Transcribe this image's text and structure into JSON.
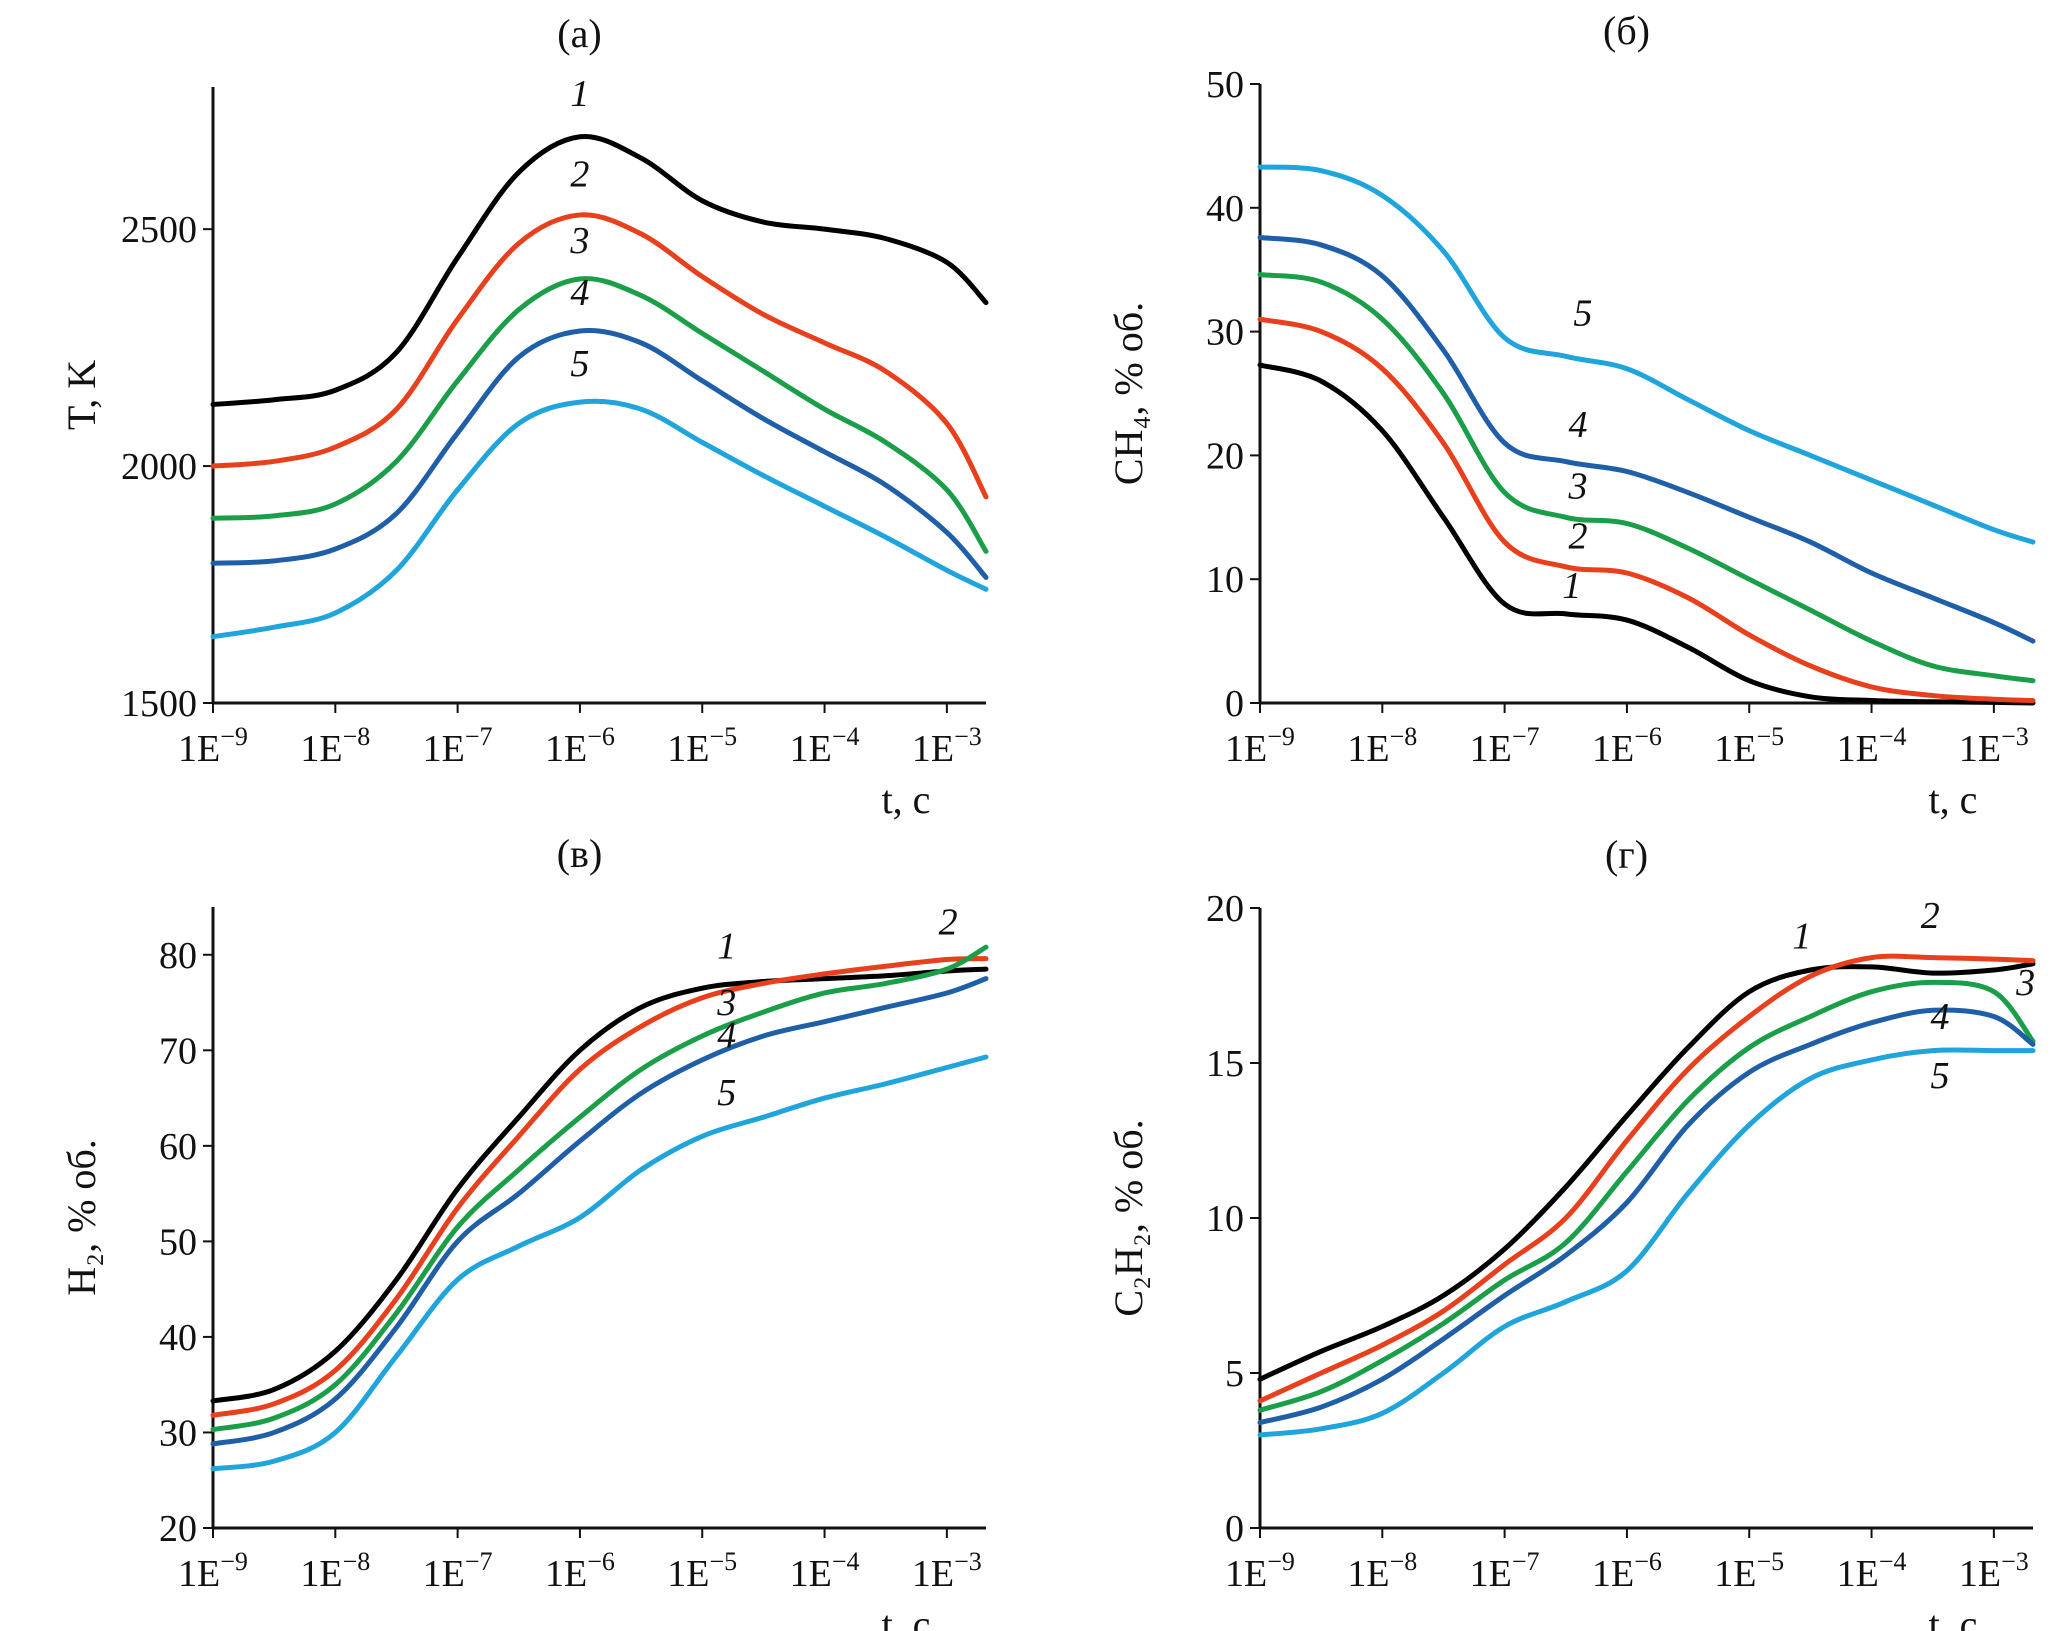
{
  "chart_data": [
    {
      "type": "line",
      "title": "(а)",
      "xlabel": "t, с",
      "ylabel": "T, K",
      "xscale": "log",
      "x_log10": [
        -9,
        -8.5,
        -8,
        -7.5,
        -7,
        -6.5,
        -6,
        -5.5,
        -5,
        -4.5,
        -4,
        -3.5,
        -3,
        -2.68
      ],
      "xticks": [
        "1E−9",
        "1E−8",
        "1E−7",
        "1E−6",
        "1E−5",
        "1E−4",
        "1E−3"
      ],
      "yticks": [
        1500,
        2000,
        2500
      ],
      "ylim": [
        1500,
        2800
      ],
      "grid": false,
      "series": [
        {
          "name": "1",
          "color": "#000000",
          "values": [
            2130,
            2140,
            2160,
            2240,
            2440,
            2620,
            2695,
            2650,
            2560,
            2515,
            2500,
            2480,
            2430,
            2345
          ],
          "label_at": [
            -6,
            2760
          ]
        },
        {
          "name": "2",
          "color": "#e8401c",
          "values": [
            2000,
            2010,
            2040,
            2120,
            2310,
            2470,
            2530,
            2490,
            2400,
            2320,
            2260,
            2200,
            2090,
            1935
          ],
          "label_at": [
            -6,
            2590
          ]
        },
        {
          "name": "3",
          "color": "#1a9e48",
          "values": [
            1890,
            1895,
            1920,
            2010,
            2180,
            2330,
            2395,
            2360,
            2280,
            2200,
            2120,
            2050,
            1950,
            1820
          ],
          "label_at": [
            -6,
            2450
          ]
        },
        {
          "name": "4",
          "color": "#1f5fa8",
          "values": [
            1795,
            1800,
            1825,
            1900,
            2070,
            2230,
            2285,
            2260,
            2180,
            2100,
            2030,
            1960,
            1860,
            1765
          ],
          "label_at": [
            -6,
            2340
          ]
        },
        {
          "name": "5",
          "color": "#1fa4dc",
          "values": [
            1640,
            1660,
            1690,
            1780,
            1950,
            2090,
            2135,
            2120,
            2050,
            1980,
            1915,
            1850,
            1780,
            1740
          ],
          "label_at": [
            -6,
            2190
          ]
        }
      ]
    },
    {
      "type": "line",
      "title": "(б)",
      "xlabel": "t, с",
      "ylabel": "CH₄, % об.",
      "xscale": "log",
      "x_log10": [
        -9,
        -8.5,
        -8,
        -7.5,
        -7,
        -6.5,
        -6,
        -5.5,
        -5,
        -4.5,
        -4,
        -3.5,
        -3,
        -2.68
      ],
      "xticks": [
        "1E−9",
        "1E−8",
        "1E−7",
        "1E−6",
        "1E−5",
        "1E−4",
        "1E−3"
      ],
      "yticks": [
        0,
        10,
        20,
        30,
        40,
        50
      ],
      "ylim": [
        0,
        50
      ],
      "grid": false,
      "series": [
        {
          "name": "1",
          "color": "#000000",
          "values": [
            27.3,
            26,
            22,
            15,
            8,
            7.2,
            6.7,
            4.5,
            1.8,
            0.5,
            0.2,
            0.1,
            0.05,
            0
          ],
          "label_at": [
            -6.45,
            8.5
          ]
        },
        {
          "name": "2",
          "color": "#e8401c",
          "values": [
            31,
            30,
            27,
            21,
            13,
            11,
            10.5,
            8.5,
            5.5,
            3,
            1.3,
            0.6,
            0.3,
            0.2
          ],
          "label_at": [
            -6.4,
            12.5
          ]
        },
        {
          "name": "3",
          "color": "#1a9e48",
          "values": [
            34.6,
            34,
            31,
            25,
            17,
            15,
            14.5,
            12.5,
            10,
            7.5,
            5,
            3,
            2.2,
            1.8
          ],
          "label_at": [
            -6.4,
            16.5
          ]
        },
        {
          "name": "4",
          "color": "#1f5fa8",
          "values": [
            37.6,
            37,
            34.5,
            28.5,
            21,
            19.5,
            18.7,
            17,
            15,
            13,
            10.5,
            8.5,
            6.5,
            5
          ],
          "label_at": [
            -6.4,
            21.5
          ]
        },
        {
          "name": "5",
          "color": "#1fa4dc",
          "values": [
            43.3,
            43,
            41,
            36.5,
            29.5,
            28,
            27,
            24.5,
            22,
            20,
            18,
            16,
            14,
            13
          ],
          "label_at": [
            -6.36,
            30.5
          ]
        }
      ]
    },
    {
      "type": "line",
      "title": "(в)",
      "xlabel": "t, с",
      "ylabel": "H₂, % об.",
      "xscale": "log",
      "x_log10": [
        -9,
        -8.5,
        -8,
        -7.5,
        -7,
        -6.5,
        -6,
        -5.5,
        -5,
        -4.5,
        -4,
        -3.5,
        -3,
        -2.68
      ],
      "xticks": [
        "1E−9",
        "1E−8",
        "1E−7",
        "1E−6",
        "1E−5",
        "1E−4",
        "1E−3"
      ],
      "yticks": [
        20,
        30,
        40,
        50,
        60,
        70,
        80
      ],
      "ylim": [
        20,
        85
      ],
      "grid": false,
      "series": [
        {
          "name": "1",
          "color": "#000000",
          "values": [
            33.3,
            34.5,
            38.5,
            46,
            55.5,
            63,
            70,
            74.5,
            76.5,
            77.2,
            77.5,
            77.8,
            78.3,
            78.5
          ],
          "label_at": [
            -4.8,
            79.6
          ]
        },
        {
          "name": "2",
          "color": "#e8401c",
          "values": [
            31.8,
            33,
            36.5,
            44,
            53.5,
            61,
            68,
            72.5,
            75.5,
            77,
            78,
            78.8,
            79.5,
            79.6
          ],
          "label_at": [
            -2.99,
            82.1
          ]
        },
        {
          "name": "3",
          "color": "#1a9e48",
          "values": [
            30.3,
            31.5,
            35,
            42.5,
            51.5,
            57.5,
            63,
            68,
            71.5,
            74,
            76,
            77,
            78.5,
            80.8
          ],
          "label_at": [
            -4.8,
            73.7
          ]
        },
        {
          "name": "4",
          "color": "#1f5fa8",
          "values": [
            28.8,
            30,
            33.5,
            41,
            50,
            55,
            60.5,
            65.5,
            69,
            71.5,
            73,
            74.5,
            76,
            77.5
          ],
          "label_at": [
            -4.8,
            70.3
          ]
        },
        {
          "name": "5",
          "color": "#1fa4dc",
          "values": [
            26.2,
            27,
            30,
            38,
            46,
            49.5,
            52.5,
            57.5,
            61,
            63,
            65,
            66.5,
            68.2,
            69.3
          ],
          "label_at": [
            -4.8,
            64.3
          ]
        }
      ]
    },
    {
      "type": "line",
      "title": "(г)",
      "xlabel": "t, с",
      "ylabel": "C₂H₂, % об.",
      "xscale": "log",
      "x_log10": [
        -9,
        -8.5,
        -8,
        -7.5,
        -7,
        -6.5,
        -6,
        -5.5,
        -5,
        -4.5,
        -4,
        -3.5,
        -3,
        -2.68
      ],
      "xticks": [
        "1E−9",
        "1E−8",
        "1E−7",
        "1E−6",
        "1E−5",
        "1E−4",
        "1E−3"
      ],
      "yticks": [
        0,
        5,
        10,
        15,
        20
      ],
      "ylim": [
        0,
        20
      ],
      "grid": false,
      "series": [
        {
          "name": "1",
          "color": "#000000",
          "values": [
            4.8,
            5.7,
            6.5,
            7.5,
            9,
            11,
            13.3,
            15.5,
            17.3,
            18,
            18.1,
            17.9,
            18,
            18.2
          ],
          "label_at": [
            -4.57,
            18.7
          ]
        },
        {
          "name": "2",
          "color": "#e8401c",
          "values": [
            4.1,
            5,
            5.9,
            7,
            8.5,
            10,
            12.5,
            14.8,
            16.5,
            17.8,
            18.4,
            18.4,
            18.35,
            18.3
          ],
          "label_at": [
            -3.52,
            19.35
          ]
        },
        {
          "name": "3",
          "color": "#1a9e48",
          "values": [
            3.8,
            4.4,
            5.4,
            6.6,
            8,
            9.2,
            11.5,
            13.8,
            15.5,
            16.5,
            17.3,
            17.6,
            17.3,
            15.7
          ],
          "label_at": [
            -2.74,
            17.2
          ]
        },
        {
          "name": "4",
          "color": "#1f5fa8",
          "values": [
            3.4,
            3.9,
            4.8,
            6.1,
            7.5,
            8.8,
            10.5,
            13,
            14.7,
            15.6,
            16.3,
            16.7,
            16.5,
            15.6
          ],
          "label_at": [
            -3.44,
            16.1
          ]
        },
        {
          "name": "5",
          "color": "#1fa4dc",
          "values": [
            3.0,
            3.2,
            3.7,
            5,
            6.5,
            7.3,
            8.3,
            10.8,
            13,
            14.5,
            15.1,
            15.4,
            15.4,
            15.4
          ],
          "label_at": [
            -3.44,
            14.2
          ]
        }
      ]
    }
  ]
}
